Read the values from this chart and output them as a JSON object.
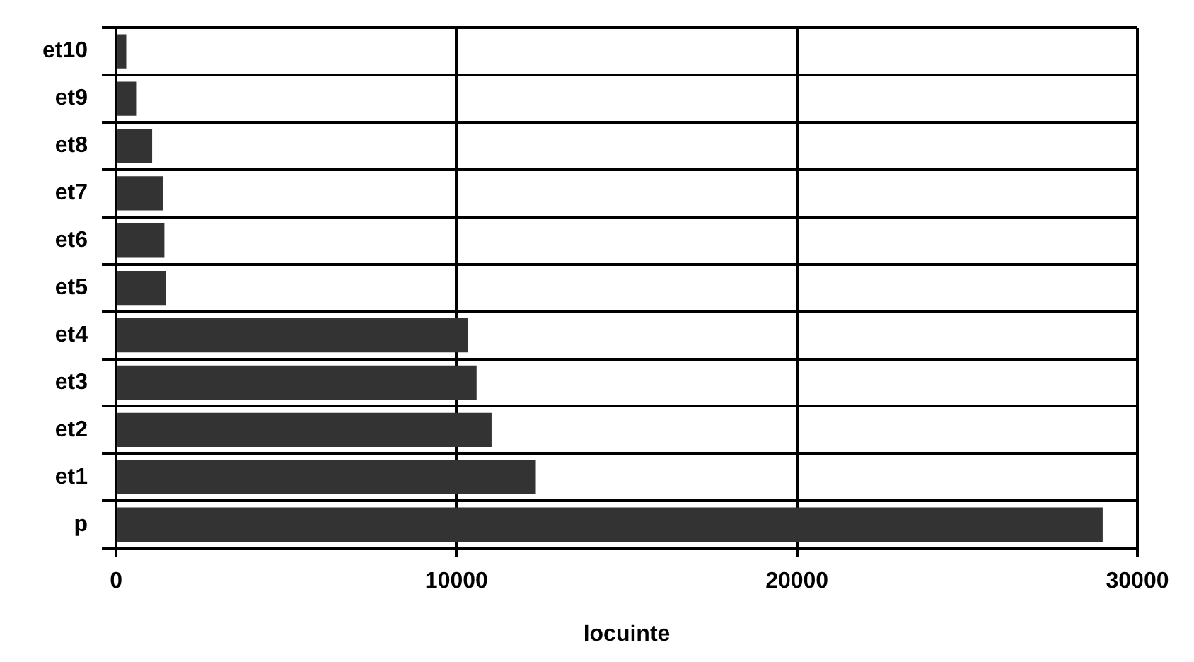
{
  "chart_data": {
    "type": "bar",
    "orientation": "horizontal",
    "xlabel": "locuinte",
    "categories": [
      "et10",
      "et9",
      "et8",
      "et7",
      "et6",
      "et5",
      "et4",
      "et3",
      "et2",
      "et1",
      "p"
    ],
    "values": [
      300,
      590,
      1060,
      1370,
      1420,
      1460,
      10330,
      10590,
      11030,
      12330,
      28980
    ],
    "color": "#333333",
    "xlim": [
      0,
      30000
    ],
    "xticks": [
      0,
      10000,
      20000,
      30000
    ],
    "grid": true,
    "legend": false
  }
}
